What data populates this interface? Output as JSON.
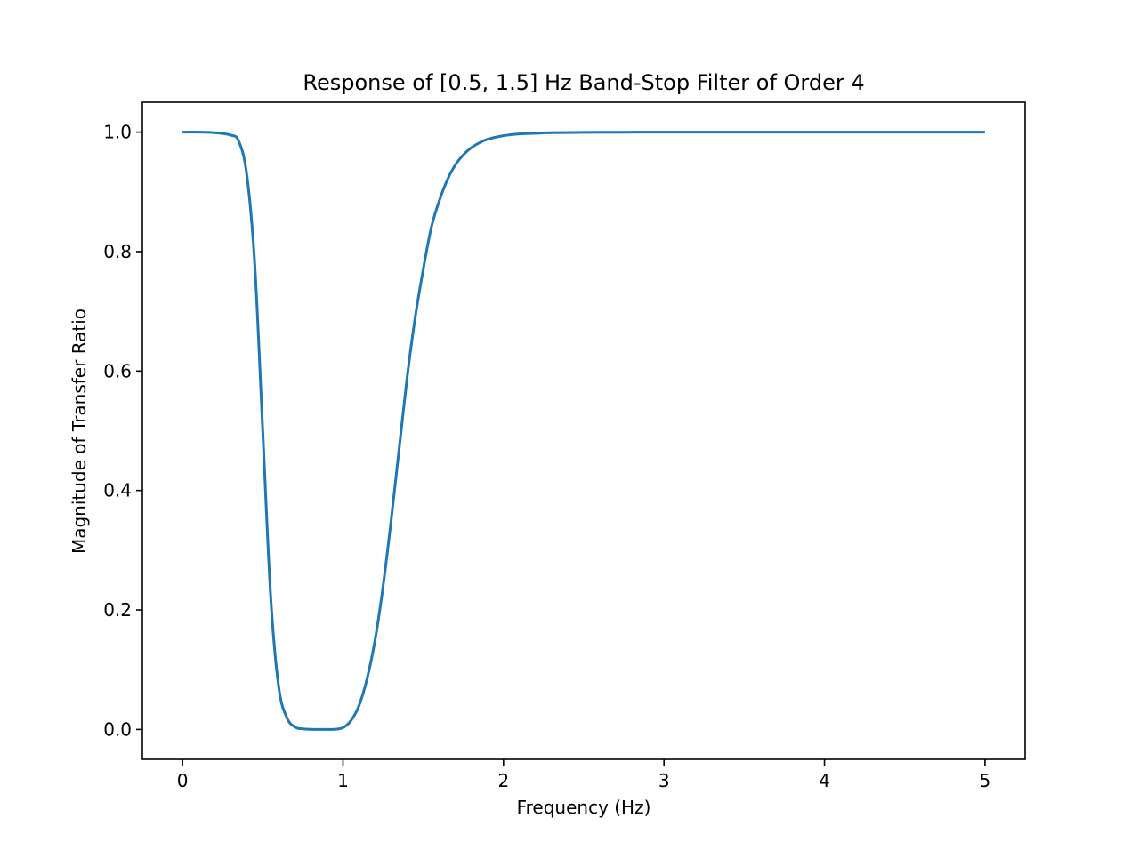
{
  "chart_data": {
    "type": "line",
    "title": "Response of [0.5, 1.5] Hz Band-Stop Filter of Order 4",
    "xlabel": "Frequency (Hz)",
    "ylabel": "Magnitude of Transfer Ratio",
    "xlim": [
      -0.25,
      5.25
    ],
    "ylim": [
      -0.05,
      1.05
    ],
    "x_ticks": [
      0,
      1,
      2,
      3,
      4,
      5
    ],
    "x_tick_labels": [
      "0",
      "1",
      "2",
      "3",
      "4",
      "5"
    ],
    "y_ticks": [
      0.0,
      0.2,
      0.4,
      0.6,
      0.8,
      1.0
    ],
    "y_tick_labels": [
      "0.0",
      "0.2",
      "0.4",
      "0.6",
      "0.8",
      "1.0"
    ],
    "grid": false,
    "legend": "none",
    "series": [
      {
        "color": "#1f77b4",
        "x": [
          0.0,
          0.1,
          0.2,
          0.3,
          0.35,
          0.4,
          0.45,
          0.5,
          0.55,
          0.6,
          0.65,
          0.7,
          0.75,
          0.8,
          0.85,
          0.9,
          0.95,
          1.0,
          1.05,
          1.1,
          1.15,
          1.2,
          1.25,
          1.3,
          1.35,
          1.4,
          1.45,
          1.5,
          1.55,
          1.6,
          1.65,
          1.7,
          1.75,
          1.8,
          1.85,
          1.9,
          2.0,
          2.1,
          2.2,
          2.3,
          2.5,
          2.75,
          3.0,
          3.5,
          4.0,
          4.5,
          5.0
        ],
        "y": [
          1.0,
          1.0,
          0.999,
          0.995,
          0.985,
          0.93,
          0.78,
          0.5,
          0.22,
          0.07,
          0.02,
          0.004,
          0.001,
          0.0002,
          0.0,
          0.0,
          0.0003,
          0.003,
          0.015,
          0.04,
          0.085,
          0.15,
          0.24,
          0.35,
          0.47,
          0.59,
          0.69,
          0.77,
          0.84,
          0.885,
          0.92,
          0.945,
          0.962,
          0.974,
          0.982,
          0.988,
          0.994,
          0.997,
          0.998,
          0.999,
          0.9995,
          0.9998,
          1.0,
          1.0,
          1.0,
          1.0,
          1.0
        ]
      }
    ]
  }
}
